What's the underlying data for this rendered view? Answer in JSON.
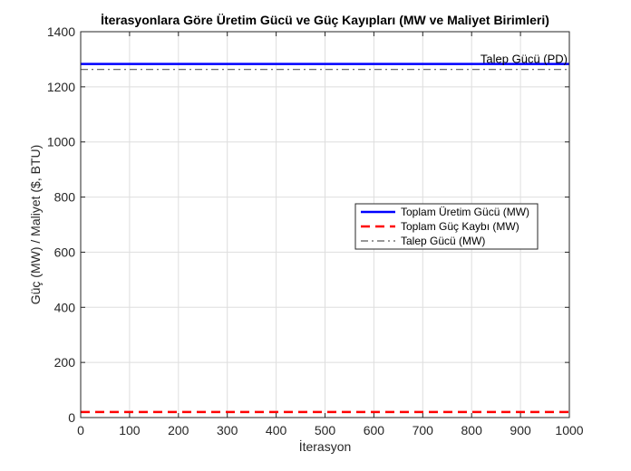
{
  "chart_data": {
    "type": "line",
    "title": "İterasyonlara Göre Üretim Gücü ve Güç Kayıpları (MW ve Maliyet Birimleri)",
    "xlabel": "İterasyon",
    "ylabel": "Güç (MW) / Maliyet ($, BTU)",
    "xlim": [
      0,
      1000
    ],
    "ylim": [
      0,
      1400
    ],
    "xticks": [
      0,
      100,
      200,
      300,
      400,
      500,
      600,
      700,
      800,
      900,
      1000
    ],
    "yticks": [
      0,
      200,
      400,
      600,
      800,
      1000,
      1200,
      1400
    ],
    "grid": true,
    "legend_position": "center-right",
    "series": [
      {
        "name": "Toplam Üretim Gücü (MW)",
        "x": [
          0,
          1000
        ],
        "y": [
          1283,
          1283
        ],
        "color": "#0000ff",
        "style": "solid"
      },
      {
        "name": "Toplam Güç Kaybı (MW)",
        "x": [
          0,
          1000
        ],
        "y": [
          20,
          20
        ],
        "color": "#ff0000",
        "style": "dashed"
      },
      {
        "name": "Talep Gücü (MW)",
        "x": [
          0,
          1000
        ],
        "y": [
          1263,
          1263
        ],
        "color": "#595959",
        "style": "dashdot"
      }
    ],
    "annotations": [
      {
        "text": "Talep Gücü (PD)",
        "x": 1000,
        "y": 1263
      }
    ]
  }
}
